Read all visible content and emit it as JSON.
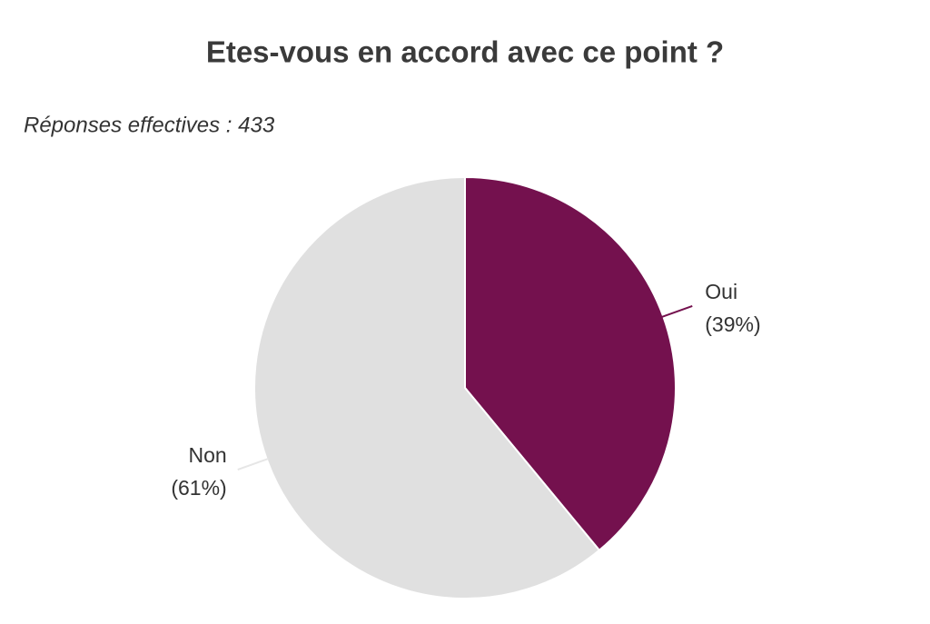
{
  "chart_data": {
    "type": "pie",
    "title": "Etes-vous en accord avec ce point ?",
    "subtitle": "Réponses effectives : 433",
    "categories": [
      "Oui",
      "Non"
    ],
    "values": [
      39,
      61
    ],
    "value_labels": [
      "(39%)",
      "(61%)"
    ],
    "colors": [
      "#74114e",
      "#e0e0e0"
    ]
  }
}
